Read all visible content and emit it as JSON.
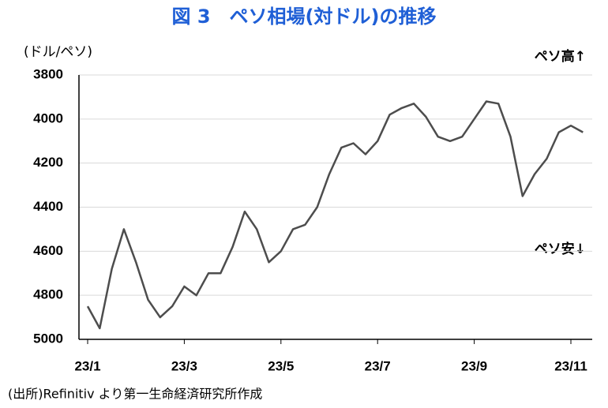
{
  "chart_data": {
    "type": "line",
    "title": "図 3　ペソ相場(対ドル)の推移",
    "y_label": "(ドル/ペソ)",
    "annotations": [
      "ペソ高↑",
      "ペソ安↓"
    ],
    "source": "(出所)Refinitiv より第一生命経済研究所作成",
    "categories": [
      "23/1",
      null,
      null,
      null,
      null,
      null,
      null,
      null,
      "23/3",
      null,
      null,
      null,
      null,
      null,
      null,
      null,
      "23/5",
      null,
      null,
      null,
      null,
      null,
      null,
      null,
      "23/7",
      null,
      null,
      null,
      null,
      null,
      null,
      null,
      "23/9",
      null,
      null,
      null,
      null,
      null,
      null,
      null,
      "23/11",
      null
    ],
    "series": [
      {
        "name": "ペソ相場",
        "color": "#4d4d4d",
        "values": [
          4850,
          4950,
          4680,
          4500,
          4650,
          4820,
          4900,
          4850,
          4760,
          4800,
          4700,
          4700,
          4580,
          4420,
          4500,
          4650,
          4600,
          4500,
          4480,
          4400,
          4250,
          4130,
          4110,
          4160,
          4100,
          3980,
          3950,
          3930,
          3990,
          4080,
          4100,
          4080,
          4000,
          3920,
          3930,
          4080,
          4350,
          4250,
          4180,
          4060,
          4030,
          4060
        ]
      }
    ],
    "ylim": [
      3800,
      5000
    ],
    "y_inverted": true,
    "yticks": [
      3800,
      4000,
      4200,
      4400,
      4600,
      4800,
      5000
    ],
    "grid": true
  }
}
